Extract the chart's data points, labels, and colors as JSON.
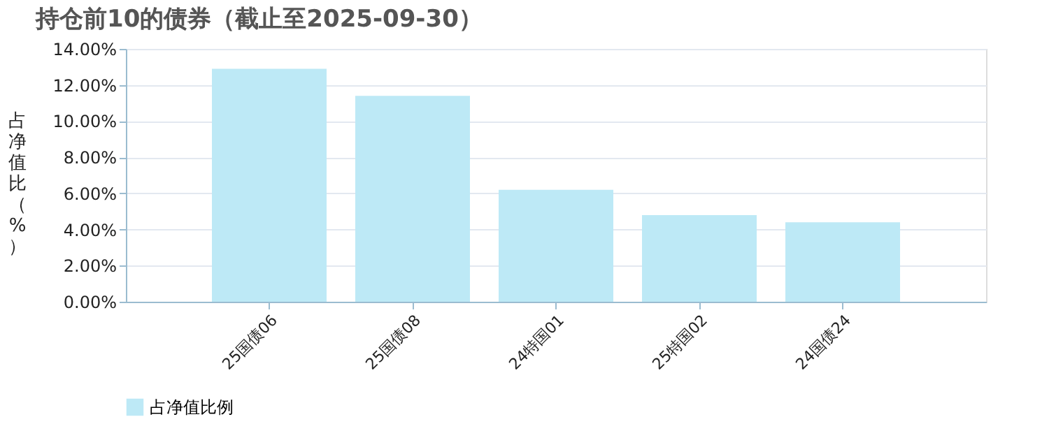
{
  "chart_data": {
    "type": "bar",
    "title": "持仓前10的债券（截止至2025-09-30）",
    "ylabel": "占净值比（%）",
    "categories": [
      "25国债06",
      "25国债08",
      "24特国01",
      "25特国02",
      "24国债24"
    ],
    "series": [
      {
        "name": "占净值比例",
        "color": "#bde9f6",
        "values": [
          12.9,
          11.4,
          6.2,
          4.8,
          4.4
        ]
      }
    ],
    "ylim": [
      0,
      14
    ],
    "yticks": [
      {
        "value": 0,
        "label": "0.00%"
      },
      {
        "value": 2,
        "label": "2.00%"
      },
      {
        "value": 4,
        "label": "4.00%"
      },
      {
        "value": 6,
        "label": "6.00%"
      },
      {
        "value": 8,
        "label": "8.00%"
      },
      {
        "value": 10,
        "label": "10.00%"
      },
      {
        "value": 12,
        "label": "12.00%"
      },
      {
        "value": 14,
        "label": "14.00%"
      }
    ],
    "grid": "y",
    "legend": "bottom"
  }
}
